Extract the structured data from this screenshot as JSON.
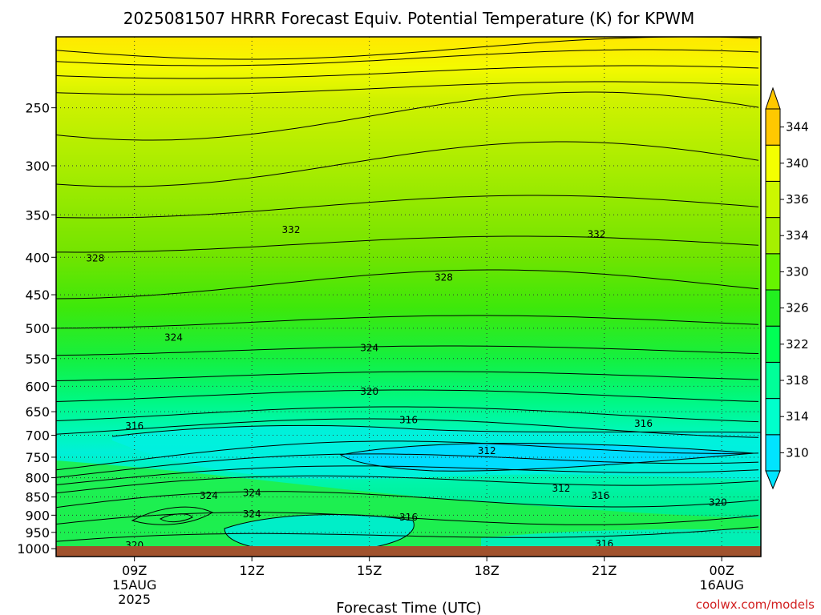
{
  "chart_data": {
    "type": "heatmap",
    "title": "2025081507 HRRR Forecast Equiv. Potential Temperature (K) for KPWM",
    "xlabel": "Forecast Time (UTC)",
    "ylabel": "",
    "x_ticks": [
      {
        "label": "09Z",
        "sub1": "15AUG",
        "sub2": "2025",
        "hour": 9
      },
      {
        "label": "12Z",
        "sub1": "",
        "sub2": "",
        "hour": 12
      },
      {
        "label": "15Z",
        "sub1": "",
        "sub2": "",
        "hour": 15
      },
      {
        "label": "18Z",
        "sub1": "",
        "sub2": "",
        "hour": 18
      },
      {
        "label": "21Z",
        "sub1": "",
        "sub2": "",
        "hour": 21
      },
      {
        "label": "00Z",
        "sub1": "16AUG",
        "sub2": "",
        "hour": 24
      }
    ],
    "xlim": [
      7,
      25
    ],
    "y_ticks": [
      250,
      300,
      350,
      400,
      450,
      500,
      550,
      600,
      650,
      700,
      750,
      800,
      850,
      900,
      950,
      1000
    ],
    "ylim_hpa": [
      1025,
      200
    ],
    "y_scale": "log",
    "grid": "dotted",
    "colorbar": {
      "levels": [
        310,
        314,
        318,
        322,
        326,
        330,
        334,
        336,
        340,
        344
      ],
      "colors": [
        "#00e4ff",
        "#00ffcc",
        "#00ff99",
        "#00ff55",
        "#22f020",
        "#66f400",
        "#a6f000",
        "#ccf800",
        "#f4ff00",
        "#ffc800"
      ],
      "extend": "both"
    },
    "contour_labels": [
      {
        "text": "332",
        "hour": 13.0,
        "p": 367
      },
      {
        "text": "332",
        "hour": 20.8,
        "p": 372
      },
      {
        "text": "328",
        "hour": 8.0,
        "p": 401
      },
      {
        "text": "328",
        "hour": 16.9,
        "p": 426
      },
      {
        "text": "324",
        "hour": 10.0,
        "p": 515
      },
      {
        "text": "324",
        "hour": 15.0,
        "p": 532
      },
      {
        "text": "320",
        "hour": 15.0,
        "p": 610
      },
      {
        "text": "316",
        "hour": 9.0,
        "p": 680
      },
      {
        "text": "316",
        "hour": 16.0,
        "p": 667
      },
      {
        "text": "316",
        "hour": 22.0,
        "p": 675
      },
      {
        "text": "312",
        "hour": 18.0,
        "p": 735
      },
      {
        "text": "312",
        "hour": 19.9,
        "p": 828
      },
      {
        "text": "316",
        "hour": 20.9,
        "p": 847
      },
      {
        "text": "320",
        "hour": 23.9,
        "p": 865
      },
      {
        "text": "324",
        "hour": 10.9,
        "p": 847
      },
      {
        "text": "324",
        "hour": 12.0,
        "p": 839
      },
      {
        "text": "324",
        "hour": 12.0,
        "p": 897
      },
      {
        "text": "316",
        "hour": 16.0,
        "p": 906
      },
      {
        "text": "320",
        "hour": 9.0,
        "p": 990
      },
      {
        "text": "316",
        "hour": 21.0,
        "p": 985
      }
    ],
    "ground_color": "#a0522d"
  },
  "credit": "coolwx.com/models"
}
